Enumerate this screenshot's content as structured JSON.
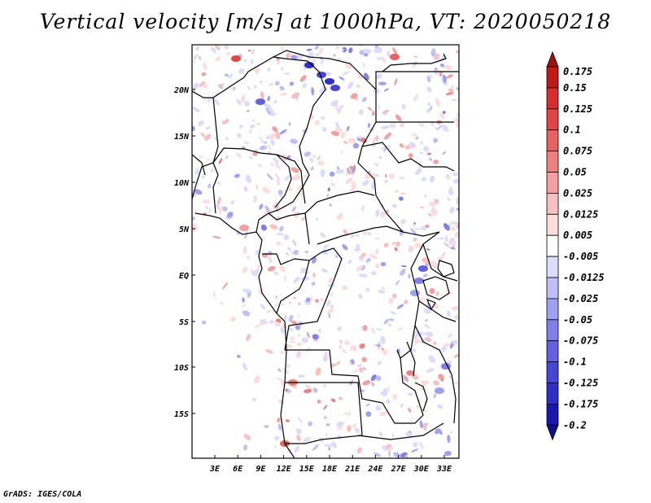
{
  "title": "Vertical velocity [m/s] at 1000hPa, VT: 2020050218",
  "credit": "GrADS: IGES/COLA",
  "map": {
    "lat_labels": [
      "20N",
      "15N",
      "10N",
      "5N",
      "EQ",
      "5S",
      "10S",
      "15S"
    ],
    "lon_labels": [
      "3E",
      "6E",
      "9E",
      "12E",
      "15E",
      "18E",
      "21E",
      "24E",
      "27E",
      "30E",
      "33E"
    ]
  },
  "colorbar": {
    "labels": [
      "0.175",
      "0.15",
      "0.125",
      "0.1",
      "0.075",
      "0.05",
      "0.025",
      "0.0125",
      "0.005",
      "-0.005",
      "-0.0125",
      "-0.025",
      "-0.05",
      "-0.075",
      "-0.1",
      "-0.125",
      "-0.175",
      "-0.2"
    ],
    "colors": [
      "#c01818",
      "#d62e2e",
      "#e04646",
      "#e86262",
      "#ee8080",
      "#f4a0a0",
      "#f8c0c0",
      "#fcdcdc",
      "#ffffff",
      "#dcdcfc",
      "#c0c0f8",
      "#a0a0f2",
      "#8080ea",
      "#6262e0",
      "#4646d6",
      "#2e2ec8",
      "#1818b0"
    ],
    "top_color": "#a01010",
    "bottom_color": "#10108c"
  }
}
